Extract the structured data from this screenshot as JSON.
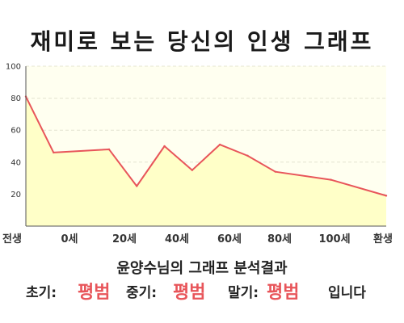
{
  "header": {
    "title": "재미로 보는 당신의 인생 그래프"
  },
  "chart_data": {
    "type": "area",
    "x_labels": [
      "전생",
      "0세",
      "20세",
      "40세",
      "60세",
      "80세",
      "100세",
      "환생"
    ],
    "x": [
      -10,
      0,
      20,
      30,
      40,
      50,
      60,
      70,
      80,
      100,
      120
    ],
    "values": [
      81,
      46,
      48,
      25,
      50,
      35,
      51,
      44,
      34,
      29,
      19
    ],
    "ylim": [
      0,
      100
    ],
    "yticks": [
      20,
      40,
      60,
      80,
      100
    ],
    "grid": true,
    "colors": {
      "line": "#e8555a",
      "fill": "#ffffc8",
      "plot_bg": "#fffff0"
    }
  },
  "summary": {
    "result_title": "윤양수님의 그래프 분석결과",
    "early_label": "초기:",
    "early_value": "평범",
    "middle_label": "중기:",
    "middle_value": "평범",
    "late_label": "말기:",
    "late_value": "평범",
    "closing": "입니다"
  },
  "colors": {
    "highlight": "#e8555a"
  }
}
